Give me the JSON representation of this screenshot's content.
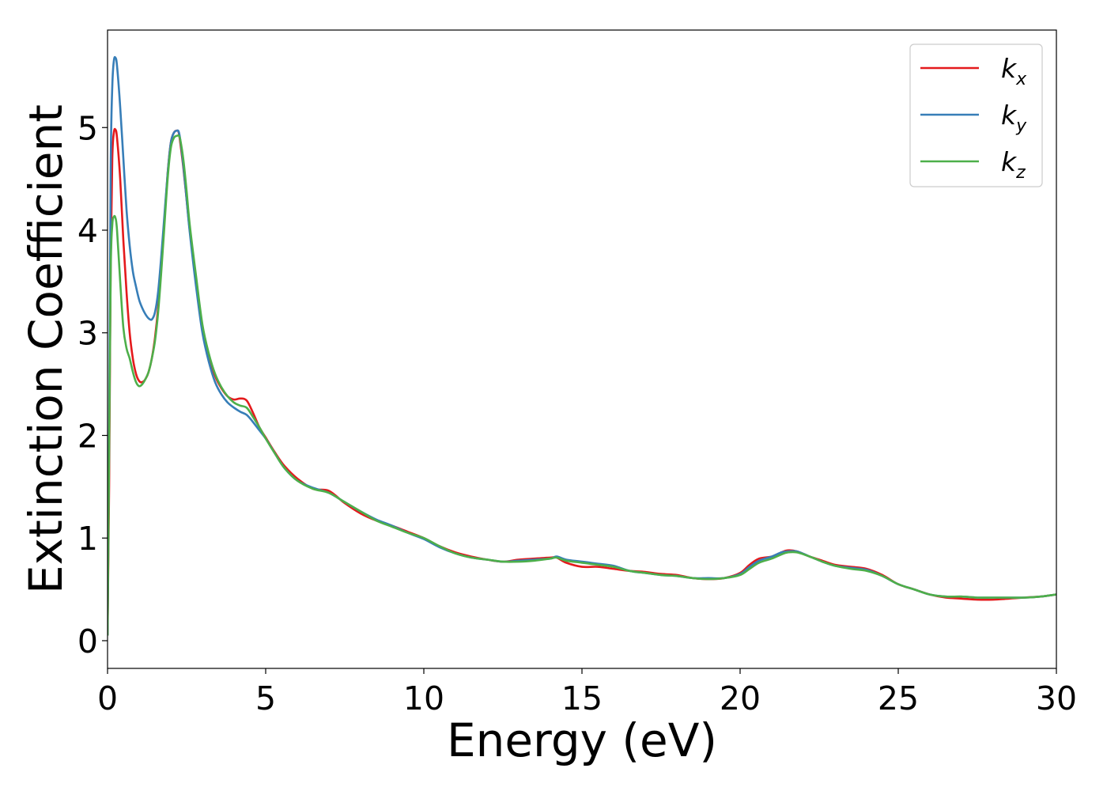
{
  "chart_data": {
    "type": "line",
    "xlabel": "Energy (eV)",
    "ylabel": "Extinction Coefficient",
    "xlim": [
      0,
      30
    ],
    "ylim": [
      -0.27,
      5.95
    ],
    "xticks": [
      0,
      5,
      10,
      15,
      20,
      25,
      30
    ],
    "xtick_labels": [
      "0",
      "5",
      "10",
      "15",
      "20",
      "25",
      "30"
    ],
    "yticks": [
      0,
      1,
      2,
      3,
      4,
      5
    ],
    "ytick_labels": [
      "0",
      "1",
      "2",
      "3",
      "4",
      "5"
    ],
    "grid": false,
    "legend_position": "top-right",
    "series": [
      {
        "name": "k",
        "subscript": "x",
        "color": "#e41a1c",
        "x": [
          0,
          0.05,
          0.1,
          0.15,
          0.2,
          0.25,
          0.3,
          0.4,
          0.5,
          0.6,
          0.7,
          0.8,
          0.9,
          1.0,
          1.1,
          1.2,
          1.3,
          1.4,
          1.5,
          1.6,
          1.7,
          1.8,
          1.9,
          2.0,
          2.1,
          2.2,
          2.25,
          2.3,
          2.4,
          2.5,
          2.6,
          2.8,
          3.0,
          3.2,
          3.4,
          3.6,
          3.8,
          4.0,
          4.2,
          4.4,
          4.6,
          4.8,
          5.0,
          5.3,
          5.6,
          6.0,
          6.5,
          7.0,
          7.5,
          8.0,
          8.5,
          9.0,
          9.5,
          10.0,
          10.5,
          11.0,
          11.5,
          12.0,
          12.5,
          13.0,
          13.5,
          14.0,
          14.2,
          14.5,
          15.0,
          15.5,
          16.0,
          16.5,
          17.0,
          17.5,
          18.0,
          18.5,
          19.0,
          19.5,
          20.0,
          20.3,
          20.6,
          21.0,
          21.3,
          21.5,
          21.8,
          22.2,
          22.6,
          23.0,
          23.5,
          24.0,
          24.5,
          25.0,
          25.5,
          26.0,
          26.5,
          27.0,
          27.5,
          28.0,
          28.5,
          29.0,
          29.5,
          30.0
        ],
        "y": [
          0.05,
          1.5,
          3.7,
          4.7,
          4.95,
          4.98,
          4.9,
          4.5,
          3.9,
          3.4,
          3.0,
          2.75,
          2.6,
          2.53,
          2.52,
          2.55,
          2.62,
          2.75,
          2.95,
          3.25,
          3.65,
          4.1,
          4.55,
          4.85,
          4.95,
          4.97,
          4.95,
          4.85,
          4.6,
          4.3,
          4.0,
          3.5,
          3.05,
          2.78,
          2.58,
          2.46,
          2.38,
          2.35,
          2.36,
          2.34,
          2.22,
          2.08,
          1.98,
          1.83,
          1.7,
          1.58,
          1.48,
          1.46,
          1.34,
          1.24,
          1.17,
          1.12,
          1.06,
          1.0,
          0.92,
          0.86,
          0.82,
          0.79,
          0.77,
          0.79,
          0.8,
          0.81,
          0.81,
          0.76,
          0.72,
          0.72,
          0.7,
          0.68,
          0.67,
          0.65,
          0.64,
          0.61,
          0.6,
          0.61,
          0.66,
          0.74,
          0.8,
          0.82,
          0.86,
          0.88,
          0.87,
          0.82,
          0.78,
          0.74,
          0.72,
          0.7,
          0.64,
          0.55,
          0.5,
          0.45,
          0.42,
          0.41,
          0.4,
          0.4,
          0.41,
          0.42,
          0.43,
          0.45
        ]
      },
      {
        "name": "k",
        "subscript": "y",
        "color": "#377eb8",
        "x": [
          0,
          0.05,
          0.1,
          0.15,
          0.2,
          0.25,
          0.3,
          0.4,
          0.5,
          0.6,
          0.7,
          0.8,
          0.9,
          1.0,
          1.1,
          1.2,
          1.3,
          1.4,
          1.5,
          1.6,
          1.7,
          1.8,
          1.9,
          2.0,
          2.1,
          2.2,
          2.25,
          2.3,
          2.4,
          2.5,
          2.6,
          2.8,
          3.0,
          3.2,
          3.4,
          3.6,
          3.8,
          4.0,
          4.2,
          4.4,
          4.6,
          4.8,
          5.0,
          5.3,
          5.6,
          6.0,
          6.5,
          7.0,
          7.5,
          8.0,
          8.5,
          9.0,
          9.5,
          10.0,
          10.5,
          11.0,
          11.5,
          12.0,
          12.5,
          13.0,
          13.5,
          14.0,
          14.2,
          14.5,
          15.0,
          15.5,
          16.0,
          16.5,
          17.0,
          17.5,
          18.0,
          18.5,
          19.0,
          19.5,
          20.0,
          20.3,
          20.6,
          21.0,
          21.3,
          21.5,
          21.8,
          22.2,
          22.6,
          23.0,
          23.5,
          24.0,
          24.5,
          25.0,
          25.5,
          26.0,
          26.5,
          27.0,
          27.5,
          28.0,
          28.5,
          29.0,
          29.5,
          30.0
        ],
        "y": [
          0.05,
          2.0,
          4.6,
          5.4,
          5.65,
          5.68,
          5.6,
          5.2,
          4.7,
          4.2,
          3.85,
          3.6,
          3.45,
          3.32,
          3.24,
          3.18,
          3.14,
          3.13,
          3.2,
          3.4,
          3.75,
          4.15,
          4.55,
          4.85,
          4.95,
          4.97,
          4.96,
          4.88,
          4.62,
          4.3,
          3.98,
          3.45,
          3.0,
          2.72,
          2.52,
          2.4,
          2.32,
          2.27,
          2.23,
          2.2,
          2.13,
          2.05,
          1.97,
          1.82,
          1.68,
          1.56,
          1.49,
          1.44,
          1.35,
          1.26,
          1.18,
          1.12,
          1.05,
          0.99,
          0.91,
          0.85,
          0.81,
          0.79,
          0.77,
          0.78,
          0.79,
          0.8,
          0.82,
          0.79,
          0.77,
          0.75,
          0.73,
          0.68,
          0.66,
          0.64,
          0.63,
          0.61,
          0.61,
          0.61,
          0.65,
          0.72,
          0.78,
          0.82,
          0.86,
          0.87,
          0.87,
          0.82,
          0.77,
          0.73,
          0.71,
          0.69,
          0.63,
          0.55,
          0.5,
          0.45,
          0.43,
          0.43,
          0.42,
          0.42,
          0.42,
          0.42,
          0.43,
          0.45
        ]
      },
      {
        "name": "k",
        "subscript": "z",
        "color": "#4daf4a",
        "x": [
          0,
          0.05,
          0.1,
          0.15,
          0.2,
          0.25,
          0.3,
          0.4,
          0.5,
          0.6,
          0.7,
          0.8,
          0.9,
          1.0,
          1.1,
          1.2,
          1.3,
          1.4,
          1.5,
          1.6,
          1.7,
          1.8,
          1.9,
          2.0,
          2.1,
          2.2,
          2.25,
          2.3,
          2.4,
          2.5,
          2.6,
          2.8,
          3.0,
          3.2,
          3.4,
          3.6,
          3.8,
          4.0,
          4.2,
          4.4,
          4.6,
          4.8,
          5.0,
          5.3,
          5.6,
          6.0,
          6.5,
          7.0,
          7.5,
          8.0,
          8.5,
          9.0,
          9.5,
          10.0,
          10.5,
          11.0,
          11.5,
          12.0,
          12.5,
          13.0,
          13.5,
          14.0,
          14.2,
          14.5,
          15.0,
          15.5,
          16.0,
          16.5,
          17.0,
          17.5,
          18.0,
          18.5,
          19.0,
          19.5,
          20.0,
          20.3,
          20.6,
          21.0,
          21.3,
          21.5,
          21.8,
          22.2,
          22.6,
          23.0,
          23.5,
          24.0,
          24.5,
          25.0,
          25.5,
          26.0,
          26.5,
          27.0,
          27.5,
          28.0,
          28.5,
          29.0,
          29.5,
          30.0
        ],
        "y": [
          0.05,
          1.8,
          3.6,
          4.05,
          4.13,
          4.12,
          4.0,
          3.5,
          3.05,
          2.85,
          2.75,
          2.62,
          2.52,
          2.48,
          2.5,
          2.55,
          2.62,
          2.75,
          2.92,
          3.2,
          3.6,
          4.05,
          4.5,
          4.8,
          4.9,
          4.92,
          4.92,
          4.88,
          4.68,
          4.38,
          4.05,
          3.55,
          3.08,
          2.8,
          2.6,
          2.47,
          2.38,
          2.32,
          2.29,
          2.27,
          2.18,
          2.08,
          1.97,
          1.82,
          1.68,
          1.56,
          1.48,
          1.44,
          1.35,
          1.26,
          1.17,
          1.11,
          1.05,
          1.0,
          0.92,
          0.85,
          0.81,
          0.79,
          0.77,
          0.77,
          0.78,
          0.8,
          0.81,
          0.78,
          0.76,
          0.74,
          0.72,
          0.68,
          0.66,
          0.64,
          0.63,
          0.61,
          0.6,
          0.61,
          0.64,
          0.7,
          0.76,
          0.8,
          0.84,
          0.86,
          0.86,
          0.82,
          0.77,
          0.73,
          0.7,
          0.68,
          0.63,
          0.55,
          0.5,
          0.45,
          0.43,
          0.43,
          0.42,
          0.42,
          0.42,
          0.42,
          0.43,
          0.45
        ]
      }
    ]
  }
}
